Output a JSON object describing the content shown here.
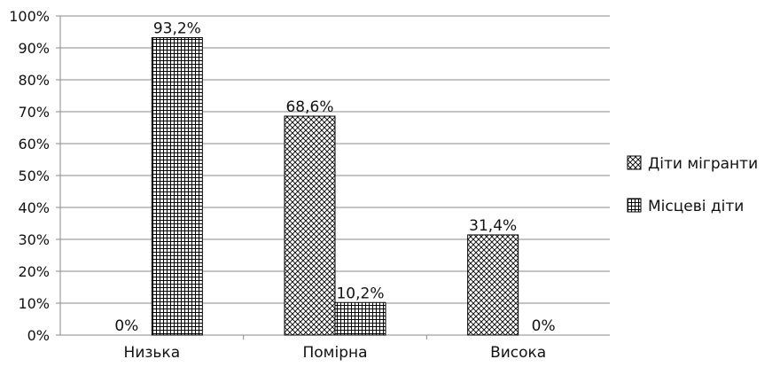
{
  "chart_data": {
    "type": "bar",
    "categories": [
      "Низька",
      "Помірна",
      "Висока"
    ],
    "series": [
      {
        "name": "Діти мігранти",
        "values": [
          0,
          68.6,
          31.4
        ],
        "labels": [
          "0%",
          "68,6%",
          "31,4%"
        ],
        "pattern": "crosshatch-diagonal"
      },
      {
        "name": "Місцеві діти",
        "values": [
          93.2,
          10.2,
          0
        ],
        "labels": [
          "93,2%",
          "10,2%",
          "0%"
        ],
        "pattern": "grid"
      }
    ],
    "yticks": [
      "0%",
      "10%",
      "20%",
      "30%",
      "40%",
      "50%",
      "60%",
      "70%",
      "80%",
      "90%",
      "100%"
    ],
    "ylim": [
      0,
      100
    ],
    "grid": true,
    "legend_position": "right",
    "title": "",
    "xlabel": "",
    "ylabel": ""
  }
}
